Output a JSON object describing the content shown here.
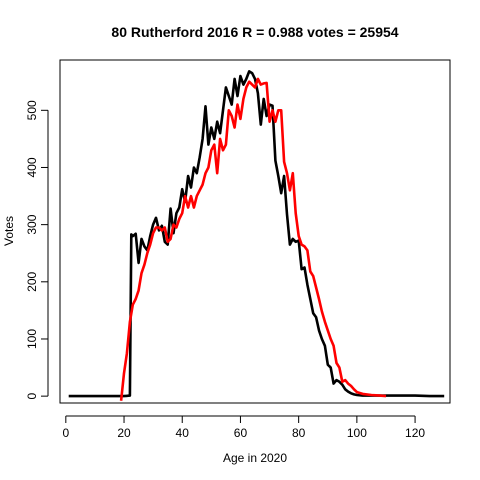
{
  "chart_data": {
    "type": "line",
    "title": "80 Rutherford 2016 R = 0.988 votes = 25954",
    "xlabel": "Age in 2020",
    "ylabel": "Votes",
    "xlim": [
      -2,
      132
    ],
    "ylim": [
      -12,
      588
    ],
    "x_ticks": [
      0,
      20,
      40,
      60,
      80,
      100,
      120
    ],
    "y_ticks": [
      0,
      100,
      200,
      300,
      400,
      500
    ],
    "grid": false,
    "legend": "none",
    "colors": {
      "actual": "#000000",
      "model": "#ff0000"
    },
    "series": [
      {
        "key": "actual",
        "x": [
          1,
          5,
          10,
          15,
          20,
          22,
          22.5,
          23,
          24,
          25,
          26,
          27,
          28,
          29,
          30,
          31,
          32,
          33,
          34,
          35,
          36,
          37,
          38,
          39,
          40,
          41,
          42,
          43,
          44,
          45,
          46,
          47,
          48,
          49,
          50,
          51,
          52,
          53,
          54,
          55,
          56,
          57,
          58,
          59,
          60,
          61,
          62,
          63,
          64,
          65,
          66,
          67,
          68,
          69,
          70,
          71,
          72,
          73,
          74,
          75,
          76,
          77,
          78,
          79,
          80,
          81,
          82,
          83,
          84,
          85,
          86,
          87,
          88,
          89,
          90,
          91,
          92,
          93,
          94,
          95,
          96,
          97,
          98,
          99,
          100,
          102,
          105,
          108,
          110,
          115,
          120,
          125,
          130
        ],
        "y": [
          0,
          0,
          0,
          0,
          0,
          1,
          283,
          280,
          284,
          233,
          275,
          262,
          255,
          280,
          300,
          312,
          290,
          298,
          270,
          265,
          328,
          285,
          320,
          330,
          362,
          340,
          385,
          365,
          400,
          390,
          418,
          450,
          507,
          440,
          470,
          450,
          480,
          460,
          500,
          540,
          525,
          510,
          555,
          525,
          560,
          545,
          555,
          568,
          565,
          555,
          530,
          475,
          520,
          490,
          510,
          508,
          412,
          385,
          355,
          385,
          318,
          265,
          275,
          270,
          272,
          222,
          225,
          195,
          170,
          145,
          138,
          115,
          100,
          88,
          55,
          50,
          22,
          28,
          25,
          20,
          12,
          8,
          5,
          3,
          2,
          1,
          1,
          1,
          1,
          1,
          1,
          0,
          0
        ]
      },
      {
        "key": "model",
        "x": [
          19,
          20,
          21,
          22,
          23,
          24,
          25,
          26,
          27,
          28,
          29,
          30,
          31,
          32,
          33,
          34,
          35,
          36,
          37,
          38,
          39,
          40,
          41,
          42,
          43,
          44,
          45,
          46,
          47,
          48,
          49,
          50,
          51,
          52,
          53,
          54,
          55,
          56,
          57,
          58,
          59,
          60,
          61,
          62,
          63,
          64,
          65,
          66,
          67,
          68,
          69,
          70,
          71,
          72,
          73,
          74,
          75,
          76,
          77,
          78,
          79,
          80,
          81,
          82,
          83,
          84,
          85,
          86,
          87,
          88,
          89,
          90,
          91,
          92,
          93,
          94,
          95,
          96,
          97,
          98,
          99,
          100,
          102,
          105,
          108,
          110
        ],
        "y": [
          -8,
          40,
          75,
          130,
          160,
          170,
          185,
          215,
          230,
          250,
          265,
          285,
          295,
          295,
          290,
          295,
          270,
          275,
          300,
          295,
          310,
          320,
          350,
          330,
          350,
          330,
          350,
          360,
          370,
          390,
          400,
          430,
          440,
          390,
          450,
          430,
          440,
          500,
          490,
          470,
          510,
          485,
          520,
          540,
          550,
          545,
          540,
          555,
          545,
          547,
          548,
          480,
          500,
          480,
          500,
          500,
          410,
          390,
          360,
          390,
          320,
          280,
          265,
          262,
          255,
          218,
          210,
          190,
          170,
          148,
          130,
          115,
          100,
          88,
          58,
          50,
          25,
          28,
          22,
          18,
          12,
          7,
          4,
          2,
          1,
          0
        ]
      }
    ]
  }
}
